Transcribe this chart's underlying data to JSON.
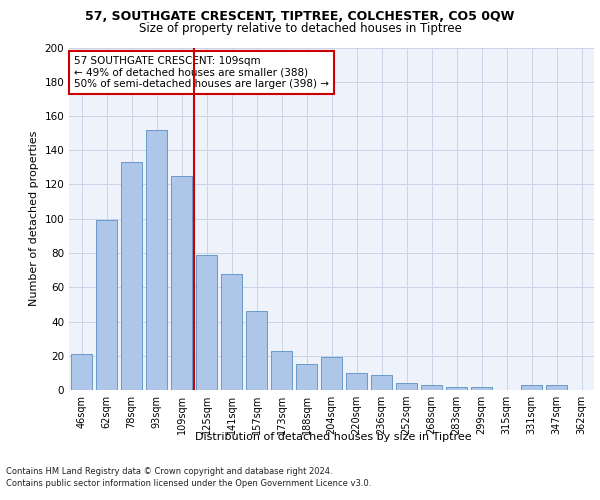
{
  "title_line1": "57, SOUTHGATE CRESCENT, TIPTREE, COLCHESTER, CO5 0QW",
  "title_line2": "Size of property relative to detached houses in Tiptree",
  "xlabel": "Distribution of detached houses by size in Tiptree",
  "ylabel": "Number of detached properties",
  "categories": [
    "46sqm",
    "62sqm",
    "78sqm",
    "93sqm",
    "109sqm",
    "125sqm",
    "141sqm",
    "157sqm",
    "173sqm",
    "188sqm",
    "204sqm",
    "220sqm",
    "236sqm",
    "252sqm",
    "268sqm",
    "283sqm",
    "299sqm",
    "315sqm",
    "331sqm",
    "347sqm",
    "362sqm"
  ],
  "values": [
    21,
    99,
    133,
    152,
    125,
    79,
    68,
    46,
    23,
    15,
    19,
    10,
    9,
    4,
    3,
    2,
    2,
    0,
    3,
    3,
    0
  ],
  "bar_color": "#aec6e8",
  "bar_edge_color": "#5a8fc0",
  "highlight_index": 4,
  "vline_color": "#cc0000",
  "annotation_text": "57 SOUTHGATE CRESCENT: 109sqm\n← 49% of detached houses are smaller (388)\n50% of semi-detached houses are larger (398) →",
  "annotation_box_color": "#cc0000",
  "ylim": [
    0,
    200
  ],
  "yticks": [
    0,
    20,
    40,
    60,
    80,
    100,
    120,
    140,
    160,
    180,
    200
  ],
  "footnote1": "Contains HM Land Registry data © Crown copyright and database right 2024.",
  "footnote2": "Contains public sector information licensed under the Open Government Licence v3.0.",
  "bg_color": "#eef2fa",
  "grid_color": "#c8d4e8"
}
